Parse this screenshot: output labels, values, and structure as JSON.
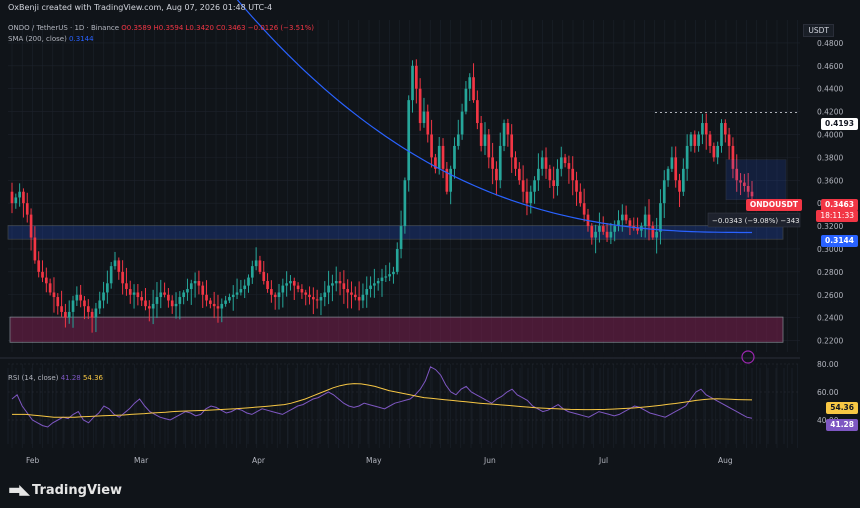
{
  "header": {
    "created_by": "OxBenji created with TradingView.com, Aug 07, 2026 01:48 UTC-4"
  },
  "legend": {
    "symbol_line": "ONDO / TetherUS · 1D · Binance",
    "open": "O0.3589",
    "high": "H0.3594",
    "low": "L0.3420",
    "close": "C0.3463",
    "change": "−0.0126 (−3.51%)",
    "sma_label": "SMA (200, close)",
    "sma_value": "0.3144",
    "rsi_label": "RSI (14, close)",
    "rsi_value1": "41.28",
    "rsi_value2": "54.36"
  },
  "currency": "USDT",
  "price_axis": [
    "0.4800",
    "0.4600",
    "0.4400",
    "0.4200",
    "0.4000",
    "0.3800",
    "0.3600",
    "0.3400",
    "0.3200",
    "0.3000",
    "0.2800",
    "0.2600",
    "0.2400",
    "0.2200"
  ],
  "rsi_axis": [
    "80.00",
    "60.00",
    "40.00"
  ],
  "time_axis": [
    "Feb",
    "Mar",
    "Apr",
    "May",
    "Jun",
    "Jul",
    "Aug"
  ],
  "badges": {
    "high_marker": "0.4193",
    "symbol": "ONDOUSDT",
    "last_price": "0.3463",
    "countdown": "18:11:33",
    "sma": "0.3144",
    "rsi_ma": "54.36",
    "rsi": "41.28"
  },
  "measure_label": "−0.0343 (−9.08%) −343",
  "branding": "TradingView",
  "colors": {
    "up": "#26a69a",
    "down": "#f23645",
    "sma": "#2962ff",
    "rsi": "#7e57c2",
    "rsi_ma": "#f7c744"
  },
  "chart_data": {
    "type": "candlestick",
    "symbol": "ONDO / TetherUS",
    "interval": "1D",
    "exchange": "Binance",
    "ylim": [
      0.21,
      0.5
    ],
    "support_zone": [
      0.3085,
      0.3205
    ],
    "demand_zone": [
      0.2185,
      0.2405
    ],
    "prev_high_level": 0.4193,
    "close_series": [
      0.34,
      0.345,
      0.35,
      0.34,
      0.33,
      0.31,
      0.29,
      0.28,
      0.275,
      0.27,
      0.262,
      0.258,
      0.25,
      0.245,
      0.24,
      0.245,
      0.255,
      0.26,
      0.255,
      0.25,
      0.245,
      0.24,
      0.248,
      0.255,
      0.262,
      0.27,
      0.285,
      0.29,
      0.28,
      0.27,
      0.265,
      0.26,
      0.262,
      0.258,
      0.255,
      0.25,
      0.248,
      0.252,
      0.258,
      0.262,
      0.26,
      0.255,
      0.25,
      0.252,
      0.258,
      0.262,
      0.265,
      0.27,
      0.272,
      0.268,
      0.26,
      0.255,
      0.252,
      0.25,
      0.248,
      0.252,
      0.255,
      0.258,
      0.26,
      0.262,
      0.265,
      0.268,
      0.275,
      0.285,
      0.29,
      0.28,
      0.272,
      0.265,
      0.26,
      0.258,
      0.262,
      0.268,
      0.27,
      0.272,
      0.268,
      0.265,
      0.262,
      0.26,
      0.258,
      0.256,
      0.255,
      0.258,
      0.262,
      0.268,
      0.27,
      0.272,
      0.27,
      0.265,
      0.262,
      0.26,
      0.258,
      0.255,
      0.26,
      0.265,
      0.268,
      0.27,
      0.272,
      0.275,
      0.276,
      0.278,
      0.28,
      0.3,
      0.32,
      0.36,
      0.43,
      0.46,
      0.44,
      0.41,
      0.42,
      0.4,
      0.38,
      0.37,
      0.39,
      0.37,
      0.35,
      0.37,
      0.39,
      0.4,
      0.42,
      0.44,
      0.45,
      0.43,
      0.41,
      0.39,
      0.4,
      0.38,
      0.37,
      0.36,
      0.39,
      0.41,
      0.4,
      0.38,
      0.37,
      0.36,
      0.35,
      0.34,
      0.35,
      0.36,
      0.37,
      0.38,
      0.37,
      0.36,
      0.355,
      0.37,
      0.38,
      0.375,
      0.37,
      0.36,
      0.35,
      0.34,
      0.33,
      0.32,
      0.31,
      0.315,
      0.32,
      0.315,
      0.31,
      0.315,
      0.32,
      0.325,
      0.33,
      0.325,
      0.32,
      0.318,
      0.316,
      0.32,
      0.33,
      0.32,
      0.31,
      0.315,
      0.34,
      0.36,
      0.37,
      0.38,
      0.36,
      0.35,
      0.37,
      0.39,
      0.4,
      0.39,
      0.4,
      0.41,
      0.4,
      0.39,
      0.38,
      0.39,
      0.41,
      0.4,
      0.39,
      0.37,
      0.36,
      0.358,
      0.355,
      0.35,
      0.346
    ],
    "sma_200_last": 0.3144,
    "rsi": {
      "period": 14,
      "last": 41.28,
      "ma_last": 54.36,
      "ylim": [
        20,
        80
      ],
      "values": [
        55,
        58,
        50,
        45,
        40,
        38,
        36,
        35,
        38,
        40,
        42,
        41,
        44,
        46,
        40,
        38,
        42,
        45,
        50,
        48,
        44,
        42,
        45,
        48,
        52,
        55,
        50,
        46,
        44,
        42,
        41,
        40,
        42,
        44,
        46,
        45,
        43,
        44,
        48,
        50,
        49,
        47,
        45,
        46,
        48,
        47,
        45,
        44,
        46,
        48,
        47,
        46,
        45,
        44,
        46,
        48,
        50,
        51,
        53,
        55,
        56,
        58,
        60,
        58,
        55,
        52,
        50,
        49,
        50,
        52,
        51,
        50,
        49,
        48,
        50,
        52,
        53,
        54,
        55,
        58,
        62,
        68,
        78,
        76,
        72,
        65,
        60,
        58,
        62,
        64,
        60,
        58,
        56,
        54,
        52,
        55,
        57,
        60,
        62,
        58,
        56,
        54,
        50,
        48,
        46,
        47,
        49,
        51,
        48,
        46,
        45,
        44,
        43,
        42,
        44,
        46,
        45,
        44,
        43,
        44,
        46,
        48,
        50,
        49,
        47,
        45,
        44,
        43,
        42,
        44,
        46,
        48,
        50,
        55,
        60,
        62,
        58,
        56,
        54,
        52,
        50,
        48,
        46,
        44,
        42,
        41.28
      ],
      "ma": [
        44,
        44,
        44,
        43.5,
        43,
        42.5,
        42,
        42,
        42,
        42,
        42.3,
        42.5,
        42.8,
        43,
        43.2,
        43.4,
        43.6,
        44,
        44.3,
        44.6,
        45,
        45.3,
        45.6,
        46,
        46.2,
        46.4,
        46.6,
        46.8,
        47,
        47.2,
        47.5,
        47.8,
        48,
        48.4,
        48.8,
        49.2,
        49.6,
        50,
        50.5,
        51,
        52,
        53.5,
        55,
        57,
        59,
        61,
        63,
        64.5,
        65.5,
        66,
        65.8,
        65,
        64,
        62.5,
        61,
        60,
        59,
        58,
        57,
        56,
        55.5,
        55,
        54.5,
        54,
        53.5,
        53,
        52.5,
        52,
        51.6,
        51.2,
        50.8,
        50.4,
        50,
        49.6,
        49.2,
        48.8,
        48.5,
        48.2,
        48,
        47.8,
        47.6,
        47.5,
        47.4,
        47.4,
        47.5,
        47.6,
        47.8,
        48,
        48.3,
        48.6,
        49,
        49.5,
        50,
        50.6,
        51.2,
        51.8,
        52.5,
        53.2,
        54,
        54.6,
        55,
        55.2,
        55,
        54.8,
        54.6,
        54.4,
        54.36
      ]
    }
  }
}
